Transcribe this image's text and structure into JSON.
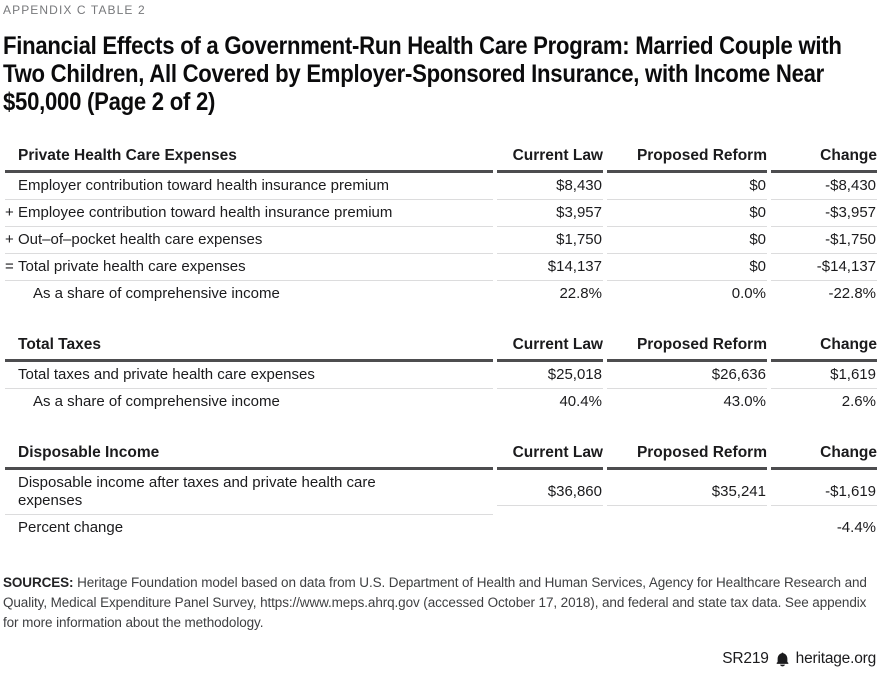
{
  "page": {
    "eyebrow": "APPENDIX C TABLE 2",
    "title_lines": [
      "Financial Effects of a Government-Run Health Care Program: Married Couple with",
      "Two Children, All Covered by Employer-Sponsored Insurance, with Income Near",
      "$50,000 (Page 2 of 2)"
    ]
  },
  "table": {
    "columns": [
      "Current Law",
      "Proposed Reform",
      "Change"
    ],
    "sections": [
      {
        "header": "Private Health Care Expenses",
        "rows": [
          {
            "prefix": "",
            "label": "Employer contribution toward health insurance premium",
            "indent": false,
            "values": [
              "$8,430",
              "$0",
              "-$8,430"
            ]
          },
          {
            "prefix": "+",
            "label": "Employee contribution toward health insurance premium",
            "indent": false,
            "values": [
              "$3,957",
              "$0",
              "-$3,957"
            ]
          },
          {
            "prefix": "+",
            "label": "Out–of–pocket health care expenses",
            "indent": false,
            "values": [
              "$1,750",
              "$0",
              "-$1,750"
            ]
          },
          {
            "prefix": "=",
            "label": "Total private health care expenses",
            "indent": false,
            "values": [
              "$14,137",
              "$0",
              "-$14,137"
            ]
          },
          {
            "prefix": "",
            "label": "As a share of comprehensive income",
            "indent": true,
            "values": [
              "22.8%",
              "0.0%",
              "-22.8%"
            ]
          }
        ]
      },
      {
        "header": "Total Taxes",
        "rows": [
          {
            "prefix": "",
            "label": "Total taxes and private health care expenses",
            "indent": false,
            "values": [
              "$25,018",
              "$26,636",
              "$1,619"
            ]
          },
          {
            "prefix": "",
            "label": "As a share of comprehensive income",
            "indent": true,
            "values": [
              "40.4%",
              "43.0%",
              "2.6%"
            ]
          }
        ]
      },
      {
        "header": "Disposable Income",
        "rows": [
          {
            "prefix": "",
            "label": "Disposable income after taxes and private health care expenses",
            "indent": false,
            "values": [
              "$36,860",
              "$35,241",
              "-$1,619"
            ]
          },
          {
            "prefix": "",
            "label": "Percent change",
            "indent": false,
            "values": [
              "",
              "",
              "-4.4%"
            ]
          }
        ]
      }
    ]
  },
  "sources": {
    "label": "SOURCES:",
    "text": "Heritage Foundation model based on data from U.S. Department of Health and Human Services, Agency for Healthcare Research and Quality, Medical Expenditure Panel Survey, https://www.meps.ahrq.gov (accessed October 17, 2018), and federal and state tax data. See appendix for more information about the methodology."
  },
  "footer": {
    "report_id": "SR219",
    "site": "heritage.org",
    "icon": "liberty-bell-icon"
  },
  "colors": {
    "rule": "#4d4d4f",
    "separator": "#dcdcdd",
    "text": "#1b1b1d",
    "muted": "#77787b"
  }
}
